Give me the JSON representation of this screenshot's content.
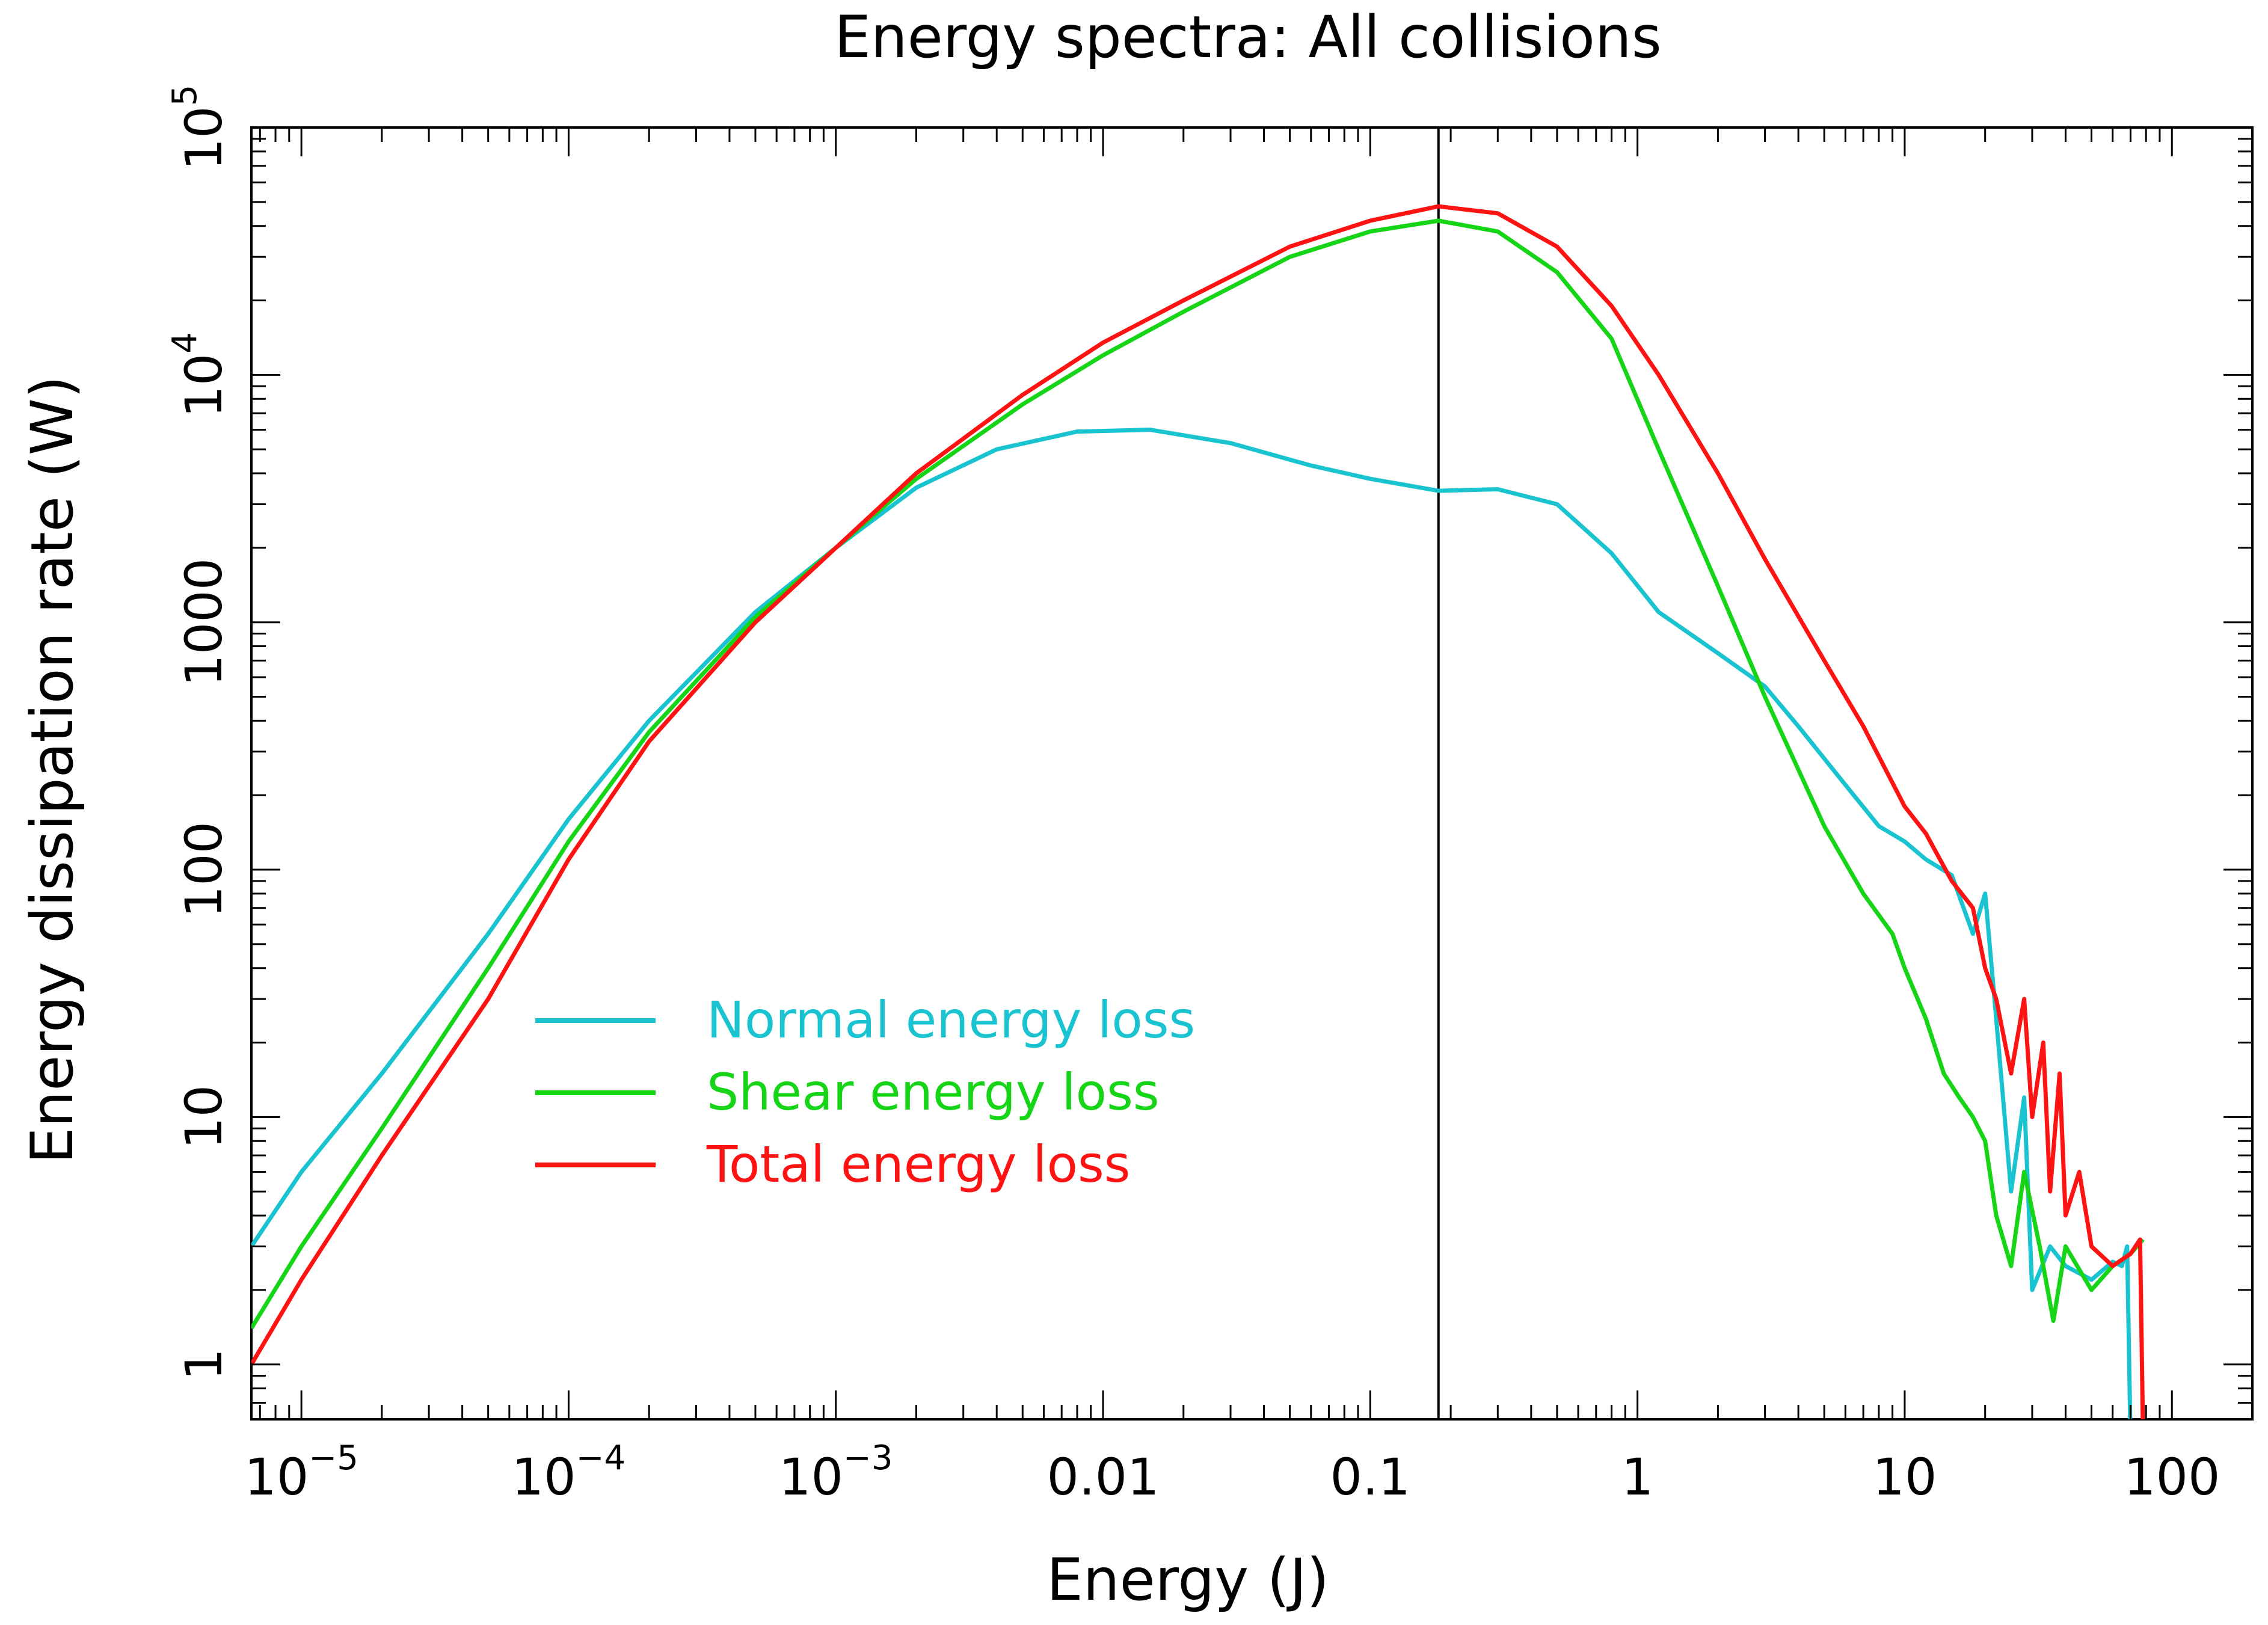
{
  "chart_data": {
    "type": "line",
    "title": "Energy spectra: All collisions",
    "xlabel": "Energy (J)",
    "ylabel": "Energy dissipation rate (W)",
    "xscale": "log",
    "yscale": "log",
    "xlim": [
      6.5e-06,
      200
    ],
    "ylim": [
      0.6,
      100000
    ],
    "x_ticks": [
      {
        "value": 1e-05,
        "base": "10",
        "exp": "−5"
      },
      {
        "value": 0.0001,
        "base": "10",
        "exp": "−4"
      },
      {
        "value": 0.001,
        "base": "10",
        "exp": "−3"
      },
      {
        "value": 0.01,
        "label": "0.01"
      },
      {
        "value": 0.1,
        "label": "0.1"
      },
      {
        "value": 1,
        "label": "1"
      },
      {
        "value": 10,
        "label": "10"
      },
      {
        "value": 100,
        "label": "100"
      }
    ],
    "y_ticks": [
      {
        "value": 1,
        "label": "1"
      },
      {
        "value": 10,
        "label": "10"
      },
      {
        "value": 100,
        "label": "100"
      },
      {
        "value": 1000,
        "label": "1000"
      },
      {
        "value": 10000,
        "base": "10",
        "exp": "4"
      },
      {
        "value": 100000,
        "base": "10",
        "exp": "5"
      }
    ],
    "vline": {
      "x": 0.18
    },
    "legend_position": "lower-left",
    "series": [
      {
        "name": "Normal energy loss",
        "color": "#19c3cf",
        "x": [
          6.5e-06,
          1e-05,
          2e-05,
          5e-05,
          0.0001,
          0.0002,
          0.0005,
          0.001,
          0.002,
          0.004,
          0.008,
          0.015,
          0.03,
          0.06,
          0.1,
          0.18,
          0.3,
          0.5,
          0.8,
          1.2,
          2,
          3,
          4,
          6,
          8,
          10,
          12,
          15,
          18,
          20,
          22,
          25,
          28,
          30,
          35,
          40,
          50,
          60,
          65,
          68,
          70,
          72
        ],
        "y": [
          3,
          6,
          15,
          55,
          160,
          400,
          1100,
          2000,
          3500,
          5000,
          5900,
          6000,
          5300,
          4300,
          3800,
          3400,
          3450,
          3000,
          1900,
          1100,
          750,
          550,
          380,
          220,
          150,
          130,
          110,
          95,
          55,
          80,
          25,
          5,
          12,
          2,
          3,
          2.5,
          2.2,
          2.6,
          2.5,
          3,
          0.5,
          0.5
        ]
      },
      {
        "name": "Shear energy loss",
        "color": "#16d416",
        "x": [
          6.5e-06,
          1e-05,
          2e-05,
          5e-05,
          0.0001,
          0.0002,
          0.0005,
          0.001,
          0.002,
          0.005,
          0.01,
          0.02,
          0.05,
          0.1,
          0.18,
          0.3,
          0.5,
          0.8,
          1.2,
          2,
          3,
          5,
          7,
          9,
          10,
          12,
          14,
          16,
          18,
          20,
          22,
          25,
          28,
          32,
          36,
          40,
          50,
          60,
          70,
          78
        ],
        "y": [
          1.4,
          3,
          9,
          40,
          130,
          360,
          1050,
          2000,
          3800,
          7600,
          12000,
          18000,
          30000,
          38000,
          42000,
          38000,
          26000,
          14000,
          5000,
          1400,
          500,
          150,
          80,
          55,
          40,
          25,
          15,
          12,
          10,
          8,
          4,
          2.5,
          6,
          3,
          1.5,
          3,
          2,
          2.5,
          2.8,
          3.2
        ]
      },
      {
        "name": "Total energy loss",
        "color": "#ff1212",
        "x": [
          6.5e-06,
          1e-05,
          2e-05,
          5e-05,
          0.0001,
          0.0002,
          0.0005,
          0.001,
          0.002,
          0.005,
          0.01,
          0.02,
          0.05,
          0.1,
          0.18,
          0.3,
          0.5,
          0.8,
          1.2,
          2,
          3,
          5,
          7,
          10,
          12,
          15,
          18,
          20,
          22,
          25,
          28,
          30,
          33,
          35,
          38,
          40,
          45,
          50,
          60,
          70,
          76,
          78
        ],
        "y": [
          1,
          2.2,
          7,
          30,
          110,
          330,
          1000,
          2000,
          4000,
          8300,
          13500,
          20000,
          33000,
          42000,
          48000,
          45000,
          33000,
          19000,
          10000,
          4000,
          1800,
          700,
          380,
          180,
          140,
          90,
          70,
          40,
          30,
          15,
          30,
          10,
          20,
          5,
          15,
          4,
          6,
          3,
          2.5,
          2.8,
          3.2,
          0.5
        ]
      }
    ]
  }
}
